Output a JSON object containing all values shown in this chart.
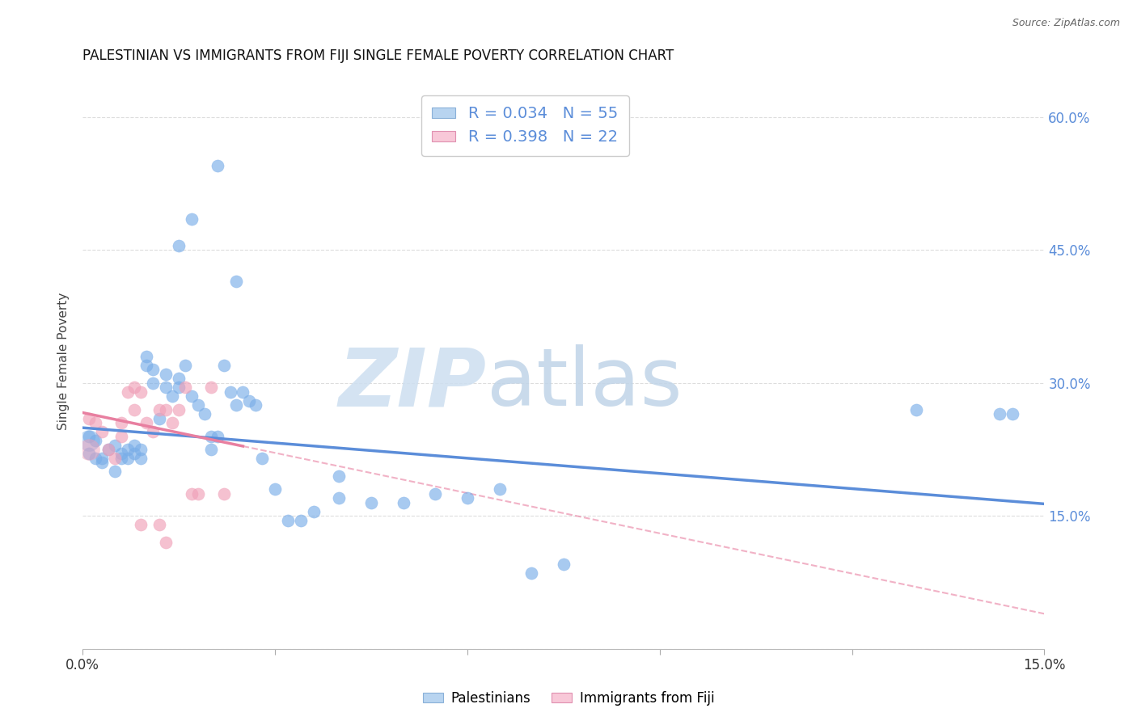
{
  "title": "PALESTINIAN VS IMMIGRANTS FROM FIJI SINGLE FEMALE POVERTY CORRELATION CHART",
  "source": "Source: ZipAtlas.com",
  "ylabel": "Single Female Poverty",
  "x_min": 0.0,
  "x_max": 0.15,
  "y_min": 0.0,
  "y_max": 0.65,
  "y_tick_positions": [
    0.0,
    0.15,
    0.3,
    0.45,
    0.6
  ],
  "y_tick_labels_right": [
    "",
    "15.0%",
    "30.0%",
    "45.0%",
    "60.0%"
  ],
  "x_tick_positions": [
    0.0,
    0.03,
    0.06,
    0.09,
    0.12,
    0.15
  ],
  "x_tick_labels": [
    "0.0%",
    "",
    "",
    "",
    "",
    "15.0%"
  ],
  "blue_color": "#5b8dd9",
  "pink_color": "#e87fa0",
  "blue_scatter_color": "#7aaee8",
  "pink_scatter_color": "#f0a0b8",
  "background_color": "#ffffff",
  "grid_color": "#dddddd",
  "blue_R": "0.034",
  "blue_N": "55",
  "pink_R": "0.398",
  "pink_N": "22",
  "blue_scatter_x": [
    0.001,
    0.001,
    0.002,
    0.002,
    0.003,
    0.003,
    0.004,
    0.005,
    0.005,
    0.006,
    0.006,
    0.007,
    0.007,
    0.008,
    0.008,
    0.009,
    0.009,
    0.01,
    0.01,
    0.011,
    0.011,
    0.012,
    0.013,
    0.013,
    0.014,
    0.015,
    0.015,
    0.016,
    0.017,
    0.018,
    0.019,
    0.02,
    0.02,
    0.021,
    0.022,
    0.023,
    0.024,
    0.025,
    0.026,
    0.027,
    0.028,
    0.03,
    0.032,
    0.034,
    0.036,
    0.04,
    0.045,
    0.05,
    0.055,
    0.06,
    0.065,
    0.07,
    0.075,
    0.13,
    0.145
  ],
  "blue_scatter_y": [
    0.24,
    0.22,
    0.215,
    0.235,
    0.21,
    0.215,
    0.225,
    0.2,
    0.23,
    0.215,
    0.22,
    0.215,
    0.225,
    0.22,
    0.23,
    0.215,
    0.225,
    0.32,
    0.33,
    0.3,
    0.315,
    0.26,
    0.31,
    0.295,
    0.285,
    0.295,
    0.305,
    0.32,
    0.285,
    0.275,
    0.265,
    0.225,
    0.24,
    0.24,
    0.32,
    0.29,
    0.275,
    0.29,
    0.28,
    0.275,
    0.215,
    0.18,
    0.145,
    0.145,
    0.155,
    0.17,
    0.165,
    0.165,
    0.175,
    0.17,
    0.18,
    0.085,
    0.095,
    0.27,
    0.265
  ],
  "pink_scatter_x": [
    0.001,
    0.002,
    0.003,
    0.004,
    0.005,
    0.006,
    0.006,
    0.007,
    0.008,
    0.008,
    0.009,
    0.01,
    0.011,
    0.012,
    0.013,
    0.014,
    0.015,
    0.016,
    0.017,
    0.018,
    0.02,
    0.022
  ],
  "pink_scatter_y": [
    0.26,
    0.255,
    0.245,
    0.225,
    0.215,
    0.24,
    0.255,
    0.29,
    0.295,
    0.27,
    0.29,
    0.255,
    0.245,
    0.27,
    0.27,
    0.255,
    0.27,
    0.295,
    0.175,
    0.175,
    0.295,
    0.175
  ],
  "scatter_size": 120,
  "scatter_alpha": 0.65,
  "big_dot_size": 350,
  "watermark_zip_color": "#cddff0",
  "watermark_atlas_color": "#c0d4e8"
}
